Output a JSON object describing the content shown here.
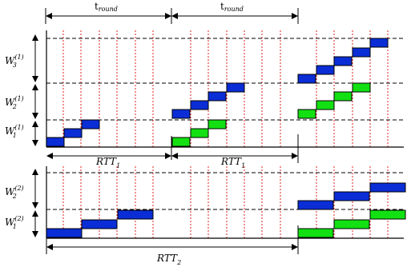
{
  "top_labels": {
    "t_round_1": {
      "base": "t",
      "sub": "round"
    },
    "t_round_2": {
      "base": "t",
      "sub": "round"
    }
  },
  "left_labels_upper": [
    {
      "base": "W",
      "sub": "3",
      "sup": "(1)"
    },
    {
      "base": "W",
      "sub": "2",
      "sup": "(1)"
    },
    {
      "base": "W",
      "sub": "1",
      "sup": "(1)"
    }
  ],
  "left_labels_lower": [
    {
      "base": "W",
      "sub": "2",
      "sup": "(2)"
    },
    {
      "base": "W",
      "sub": "1",
      "sup": "(2)"
    }
  ],
  "rtt_labels": {
    "rtt1_a": {
      "base": "RTT",
      "sub": "1"
    },
    "rtt1_b": {
      "base": "RTT",
      "sub": "1"
    },
    "rtt2": {
      "base": "RTT",
      "sub": "2"
    }
  },
  "colors": {
    "blue": "#0a2dd6",
    "green": "#12e012",
    "red_dotted": "#e02020",
    "line": "#000000"
  }
}
